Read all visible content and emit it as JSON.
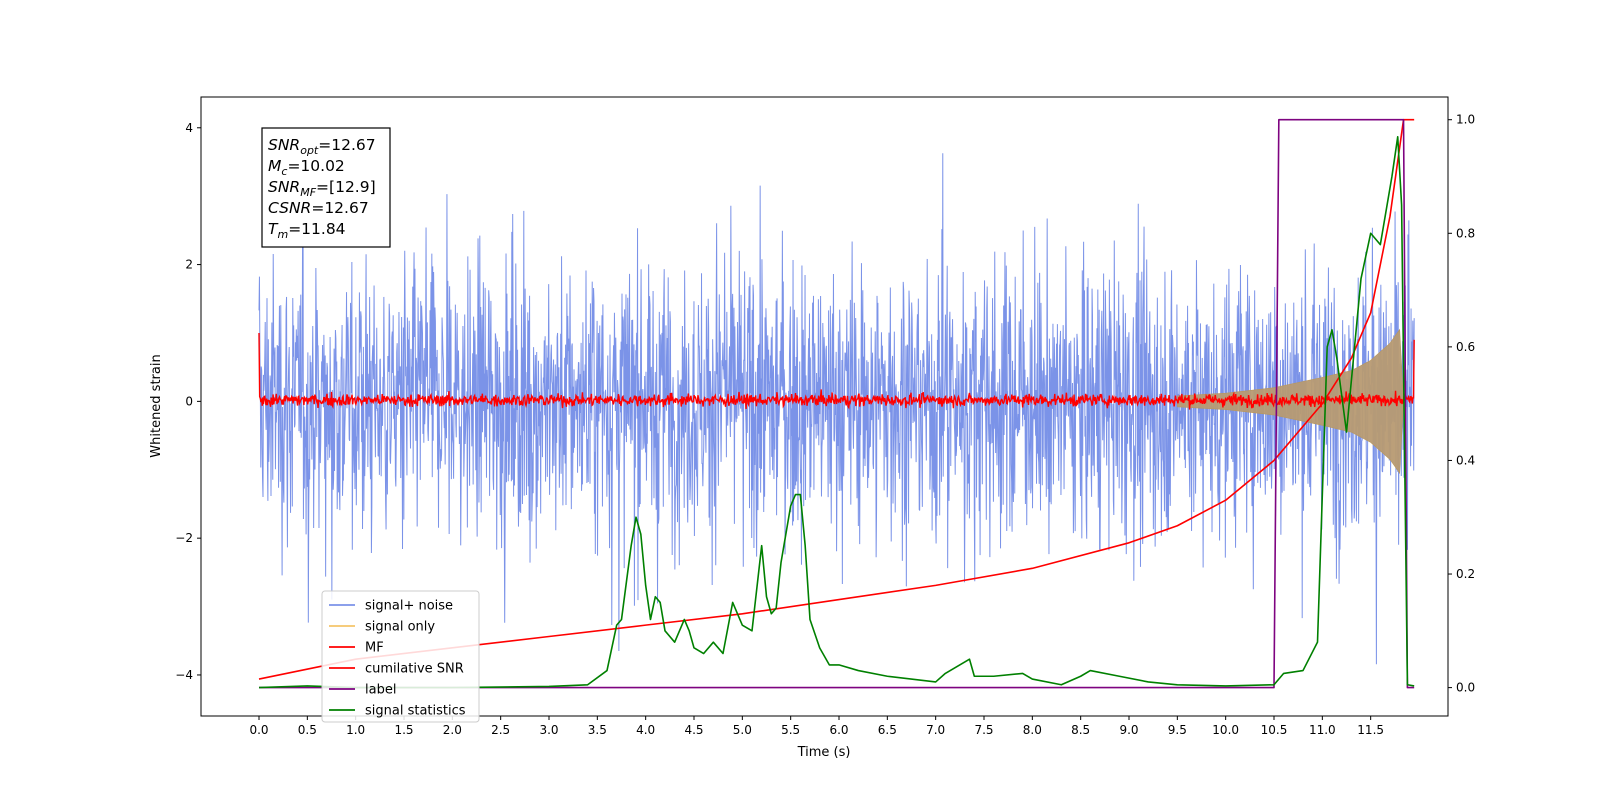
{
  "chart_data": {
    "type": "line",
    "xlabel": "Time (s)",
    "ylabel_left": "Whitened strain",
    "ylabel_right": "",
    "xlim": [
      -0.6,
      12.3
    ],
    "ylim_left": [
      -4.6,
      4.45
    ],
    "ylim_right": [
      -0.05,
      1.04
    ],
    "x_ticks": [
      0.0,
      0.5,
      1.0,
      1.5,
      2.0,
      2.5,
      3.0,
      3.5,
      4.0,
      4.5,
      5.0,
      5.5,
      6.0,
      6.5,
      7.0,
      7.5,
      8.0,
      8.5,
      9.0,
      9.5,
      10.0,
      10.5,
      11.0,
      11.5
    ],
    "x_tick_labels": [
      "0.0",
      "0.5",
      "1.0",
      "1.5",
      "2.0",
      "2.5",
      "3.0",
      "3.5",
      "4.0",
      "4.5",
      "5.0",
      "5.5",
      "6.0",
      "6.5",
      "7.0",
      "7.5",
      "8.0",
      "8.5",
      "9.0",
      "9.5",
      "10.0",
      "10.5",
      "11.0",
      "11.5"
    ],
    "y_ticks_left": [
      -4,
      -2,
      0,
      2,
      4
    ],
    "y_tick_labels_left": [
      "−4",
      "−2",
      "0",
      "2",
      "4"
    ],
    "y_ticks_right": [
      0.0,
      0.2,
      0.4,
      0.6,
      0.8,
      1.0
    ],
    "y_tick_labels_right": [
      "0.0",
      "0.2",
      "0.4",
      "0.6",
      "0.8",
      "1.0"
    ],
    "grid": false,
    "legend_position": "bottom-left",
    "annotation": [
      {
        "sym": "SNR",
        "sub": "opt",
        "value": "=12.67"
      },
      {
        "sym": "M",
        "sub": "c",
        "value": "=10.02"
      },
      {
        "sym": "SNR",
        "sub": "MF",
        "value": "=[12.9]"
      },
      {
        "sym": "CSNR",
        "sub": "",
        "value": "=12.67"
      },
      {
        "sym": "T",
        "sub": "m",
        "value": "=11.84"
      }
    ],
    "series": [
      {
        "name": "signal+ noise",
        "color": "#7b93e8",
        "axis": "left",
        "description": "dense whitened noise, x from 0.0 to 11.95 s",
        "x_range": [
          0.0,
          11.95
        ],
        "band": [
          -2.3,
          2.3
        ],
        "spike_extremes": [
          -4.1,
          4.05
        ]
      },
      {
        "name": "signal only",
        "color": "#f5c56a",
        "axis": "left",
        "description": "chirp envelope growing toward merger",
        "envelope_x": [
          9.5,
          10.0,
          10.5,
          11.0,
          11.3,
          11.5,
          11.7,
          11.8,
          11.84
        ],
        "envelope_amp": [
          0.08,
          0.12,
          0.2,
          0.35,
          0.45,
          0.6,
          0.85,
          1.05,
          0.0
        ]
      },
      {
        "name": "MF",
        "color": "#ff0000",
        "axis": "left",
        "description": "matched filter output, noise around 0 with end spikes",
        "x_range": [
          0.0,
          11.95
        ],
        "start_value": 1.0,
        "end_value": 0.9,
        "band": [
          -0.1,
          0.15
        ]
      },
      {
        "name": "cumilative SNR",
        "color": "#ff0000",
        "axis": "right",
        "x": [
          0.0,
          1.0,
          2.0,
          3.0,
          4.0,
          5.0,
          6.0,
          7.0,
          8.0,
          9.0,
          9.5,
          10.0,
          10.5,
          11.0,
          11.3,
          11.5,
          11.7,
          11.84,
          11.95
        ],
        "values": [
          0.015,
          0.05,
          0.07,
          0.09,
          0.11,
          0.13,
          0.155,
          0.18,
          0.21,
          0.255,
          0.285,
          0.33,
          0.4,
          0.5,
          0.58,
          0.66,
          0.83,
          1.0,
          1.0
        ]
      },
      {
        "name": "label",
        "color": "#7e0380",
        "axis": "right",
        "x": [
          0.0,
          10.5,
          10.55,
          11.84,
          11.88,
          11.95
        ],
        "values": [
          0.0,
          0.0,
          1.0,
          1.0,
          0.0,
          0.0
        ]
      },
      {
        "name": "signal statistics",
        "color": "#008000",
        "axis": "right",
        "x": [
          0.0,
          0.5,
          1.0,
          2.0,
          3.0,
          3.4,
          3.6,
          3.7,
          3.75,
          3.85,
          3.9,
          3.95,
          4.0,
          4.05,
          4.1,
          4.15,
          4.2,
          4.3,
          4.4,
          4.45,
          4.5,
          4.6,
          4.7,
          4.8,
          4.9,
          5.0,
          5.1,
          5.2,
          5.25,
          5.3,
          5.35,
          5.4,
          5.5,
          5.55,
          5.6,
          5.65,
          5.7,
          5.8,
          5.9,
          6.0,
          6.2,
          6.5,
          7.0,
          7.1,
          7.35,
          7.4,
          7.6,
          7.9,
          8.0,
          8.3,
          8.5,
          8.6,
          8.9,
          9.2,
          9.5,
          10.0,
          10.5,
          10.6,
          10.8,
          10.95,
          11.05,
          11.1,
          11.15,
          11.25,
          11.4,
          11.5,
          11.6,
          11.72,
          11.78,
          11.82,
          11.88,
          11.95
        ],
        "values": [
          0.0,
          0.003,
          0.0,
          0.0,
          0.002,
          0.005,
          0.03,
          0.11,
          0.12,
          0.25,
          0.3,
          0.27,
          0.18,
          0.12,
          0.16,
          0.15,
          0.1,
          0.08,
          0.12,
          0.1,
          0.07,
          0.06,
          0.08,
          0.06,
          0.15,
          0.11,
          0.1,
          0.25,
          0.16,
          0.13,
          0.14,
          0.22,
          0.32,
          0.34,
          0.34,
          0.25,
          0.12,
          0.07,
          0.04,
          0.04,
          0.03,
          0.02,
          0.01,
          0.025,
          0.05,
          0.02,
          0.02,
          0.025,
          0.015,
          0.005,
          0.02,
          0.03,
          0.02,
          0.01,
          0.005,
          0.003,
          0.005,
          0.025,
          0.03,
          0.08,
          0.6,
          0.63,
          0.58,
          0.45,
          0.72,
          0.8,
          0.78,
          0.9,
          0.97,
          0.85,
          0.005,
          0.003
        ]
      }
    ]
  }
}
